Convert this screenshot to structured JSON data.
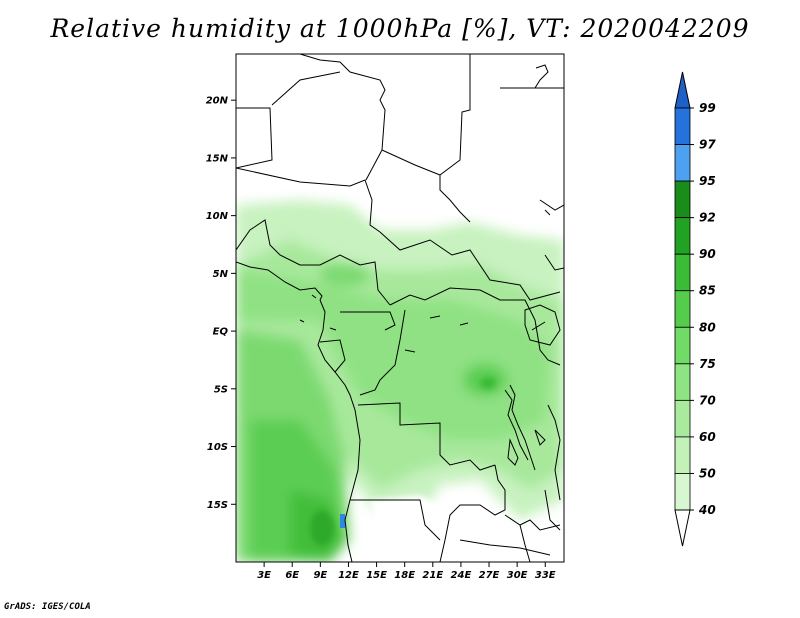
{
  "title": "Relative humidity at 1000hPa [%], VT: 2020042209",
  "footer": "GrADS: IGES/COLA",
  "map": {
    "lon_range": [
      0,
      35
    ],
    "lat_range": [
      -20,
      24
    ],
    "lat_ticks": [
      {
        "value": 20,
        "label": "20N"
      },
      {
        "value": 15,
        "label": "15N"
      },
      {
        "value": 10,
        "label": "10N"
      },
      {
        "value": 5,
        "label": "5N"
      },
      {
        "value": 0,
        "label": "EQ"
      },
      {
        "value": -5,
        "label": "5S"
      },
      {
        "value": -10,
        "label": "10S"
      },
      {
        "value": -15,
        "label": "15S"
      }
    ],
    "lon_ticks": [
      {
        "value": 3,
        "label": "3E"
      },
      {
        "value": 6,
        "label": "6E"
      },
      {
        "value": 9,
        "label": "9E"
      },
      {
        "value": 12,
        "label": "12E"
      },
      {
        "value": 15,
        "label": "15E"
      },
      {
        "value": 18,
        "label": "18E"
      },
      {
        "value": 21,
        "label": "21E"
      },
      {
        "value": 24,
        "label": "24E"
      },
      {
        "value": 27,
        "label": "27E"
      },
      {
        "value": 30,
        "label": "30E"
      },
      {
        "value": 33,
        "label": "33E"
      }
    ]
  },
  "colorbar": {
    "levels": [
      {
        "label": "40",
        "color": "#eafbe6"
      },
      {
        "label": "50",
        "color": "#d7f7d0"
      },
      {
        "label": "60",
        "color": "#c2f2b8"
      },
      {
        "label": "70",
        "color": "#a8eb9c"
      },
      {
        "label": "75",
        "color": "#8ee382"
      },
      {
        "label": "80",
        "color": "#72da67"
      },
      {
        "label": "85",
        "color": "#55cc4c"
      },
      {
        "label": "90",
        "color": "#3bbb36"
      },
      {
        "label": "92",
        "color": "#22a222"
      },
      {
        "label": "95",
        "color": "#1a8c1a"
      },
      {
        "label": "97",
        "color": "#4ea1f0"
      },
      {
        "label": "99",
        "color": "#2572dc"
      }
    ],
    "top_color": "#1e5fc8",
    "bottom_color": "#ffffff"
  }
}
